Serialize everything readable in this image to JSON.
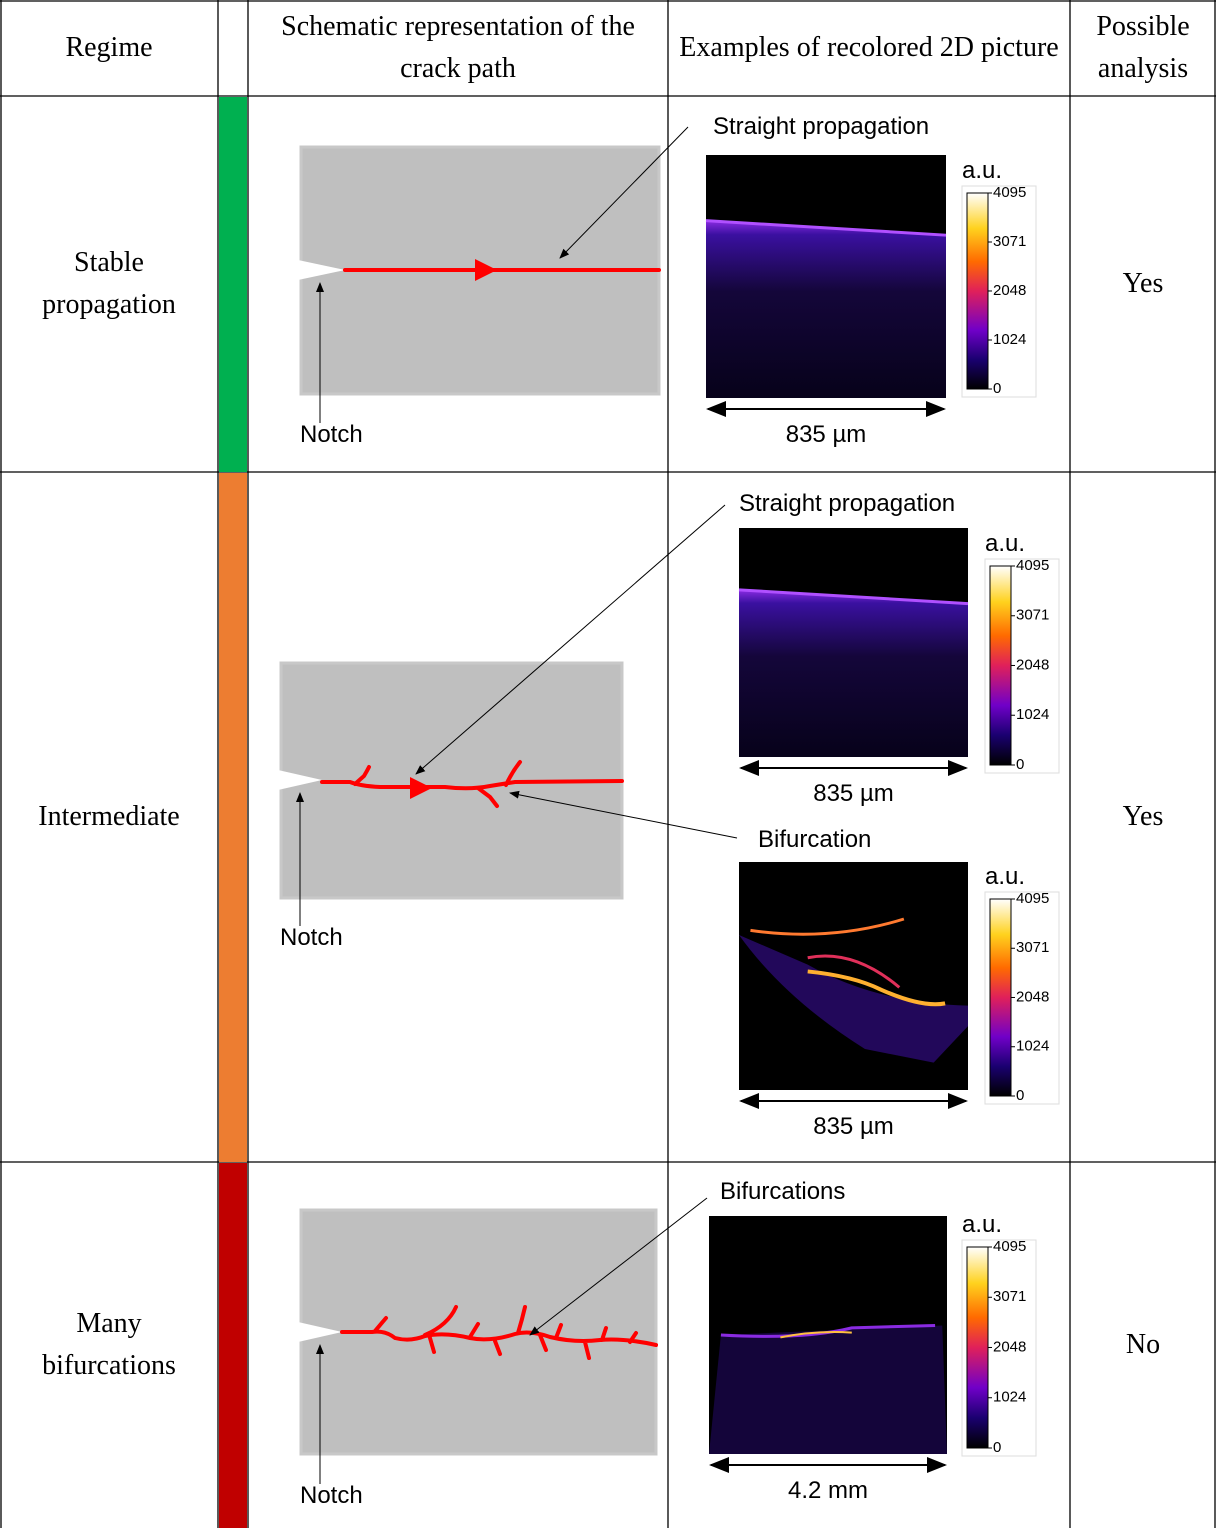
{
  "header": {
    "regime": "Regime",
    "schematic": "Schematic representation of the crack path",
    "examples": "Examples of recolored 2D picture",
    "analysis": "Possible analysis"
  },
  "rows": [
    {
      "regime": "Stable propagation",
      "color": "#00b050",
      "notch": "Notch",
      "annotations": [
        "Straight propagation"
      ],
      "images": [
        {
          "unit": "a.u.",
          "ticks": [
            4095,
            3071,
            2048,
            1024,
            0
          ],
          "scale": "835 µm"
        }
      ],
      "analysis": "Yes"
    },
    {
      "regime": "Intermediate",
      "color": "#ed7d31",
      "notch": "Notch",
      "annotations": [
        "Straight propagation",
        "Bifurcation"
      ],
      "images": [
        {
          "unit": "a.u.",
          "ticks": [
            4095,
            3071,
            2048,
            1024,
            0
          ],
          "scale": "835 µm"
        },
        {
          "unit": "a.u.",
          "ticks": [
            4095,
            3071,
            2048,
            1024,
            0
          ],
          "scale": "835 µm"
        }
      ],
      "analysis": "Yes"
    },
    {
      "regime": "Many bifurcations",
      "color": "#c00000",
      "notch": "Notch",
      "annotations": [
        "Bifurcations"
      ],
      "images": [
        {
          "unit": "a.u.",
          "ticks": [
            4095,
            3071,
            2048,
            1024,
            0
          ],
          "scale": "4.2 mm"
        }
      ],
      "analysis": "No"
    }
  ]
}
